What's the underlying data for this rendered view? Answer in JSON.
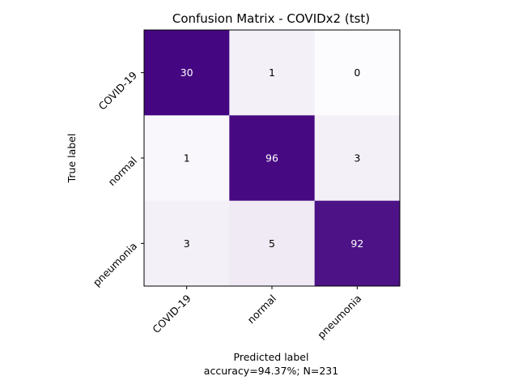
{
  "chart_data": {
    "type": "heatmap",
    "title": "Confusion Matrix - COVIDx2 (tst)",
    "xlabel": "Predicted label",
    "xlabel_sub": "accuracy=94.37%; N=231",
    "ylabel": "True label",
    "x_categories": [
      "COVID-19",
      "normal",
      "pneumonia"
    ],
    "y_categories": [
      "COVID-19",
      "normal",
      "pneumonia"
    ],
    "matrix": [
      [
        30,
        1,
        0
      ],
      [
        1,
        96,
        3
      ],
      [
        3,
        5,
        92
      ]
    ],
    "row_fraction_colors": true,
    "colormap": "Purples",
    "colors": {
      "high": "#3f007d",
      "low": "#fcfbfd",
      "text_dark": "#000000",
      "text_light": "#ffffff"
    }
  }
}
